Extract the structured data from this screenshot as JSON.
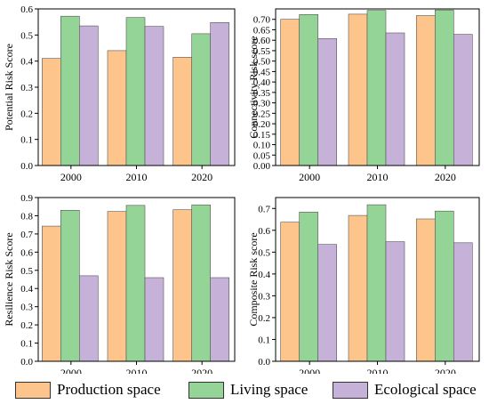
{
  "chart_data": [
    {
      "type": "bar",
      "categories": [
        "2000",
        "2010",
        "2020"
      ],
      "ylabel": "Potential Risk Score",
      "ylim": [
        0,
        0.6
      ],
      "yticks": [
        "0.0",
        "0.1",
        "0.2",
        "0.3",
        "0.4",
        "0.5",
        "0.6"
      ],
      "series": [
        {
          "name": "Production space",
          "values": [
            0.41,
            0.44,
            0.415
          ]
        },
        {
          "name": "Living space",
          "values": [
            0.572,
            0.567,
            0.505
          ]
        },
        {
          "name": "Ecological space",
          "values": [
            0.535,
            0.533,
            0.548
          ]
        }
      ]
    },
    {
      "type": "bar",
      "categories": [
        "2000",
        "2010",
        "2020"
      ],
      "ylabel": "Connectivity Risk score",
      "ylim": [
        0,
        0.75
      ],
      "yticks": [
        "0.00",
        "0.05",
        "0.10",
        "0.15",
        "0.20",
        "0.25",
        "0.30",
        "0.35",
        "0.40",
        "0.45",
        "0.50",
        "0.55",
        "0.60",
        "0.65",
        "0.70"
      ],
      "series": [
        {
          "name": "Production space",
          "values": [
            0.7,
            0.725,
            0.718
          ]
        },
        {
          "name": "Living space",
          "values": [
            0.723,
            0.743,
            0.745
          ]
        },
        {
          "name": "Ecological space",
          "values": [
            0.608,
            0.635,
            0.628
          ]
        }
      ]
    },
    {
      "type": "bar",
      "categories": [
        "2000",
        "2010",
        "2020"
      ],
      "ylabel": "Resilience Risk Score",
      "ylim": [
        0,
        0.9
      ],
      "yticks": [
        "0.0",
        "0.1",
        "0.2",
        "0.3",
        "0.4",
        "0.5",
        "0.6",
        "0.7",
        "0.8",
        "0.9"
      ],
      "series": [
        {
          "name": "Production space",
          "values": [
            0.743,
            0.823,
            0.833
          ]
        },
        {
          "name": "Living space",
          "values": [
            0.83,
            0.857,
            0.86
          ]
        },
        {
          "name": "Ecological space",
          "values": [
            0.47,
            0.46,
            0.46
          ]
        }
      ]
    },
    {
      "type": "bar",
      "categories": [
        "2000",
        "2010",
        "2020"
      ],
      "ylabel": "Composite Risk score",
      "ylim": [
        0,
        0.75
      ],
      "yticks": [
        "0.0",
        "0.1",
        "0.2",
        "0.3",
        "0.4",
        "0.5",
        "0.6",
        "0.7"
      ],
      "series": [
        {
          "name": "Production space",
          "values": [
            0.637,
            0.668,
            0.652
          ]
        },
        {
          "name": "Living space",
          "values": [
            0.683,
            0.717,
            0.688
          ]
        },
        {
          "name": "Ecological space",
          "values": [
            0.535,
            0.548,
            0.543
          ]
        }
      ]
    }
  ],
  "legend": [
    {
      "label": "Production space",
      "color": "#fdc58c"
    },
    {
      "label": "Living space",
      "color": "#95d497"
    },
    {
      "label": "Ecological space",
      "color": "#c6b2d8"
    }
  ],
  "colors": {
    "production": "#fdc58c",
    "living": "#95d497",
    "ecological": "#c6b2d8",
    "bar_stroke": "#555555"
  }
}
